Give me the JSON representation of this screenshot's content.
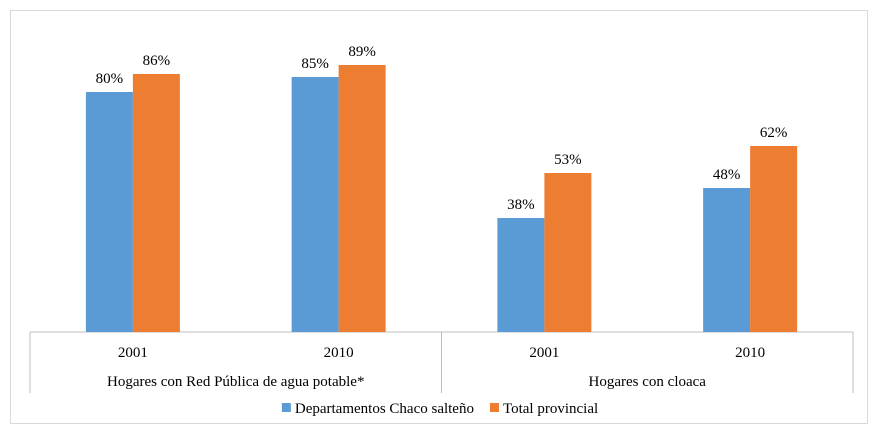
{
  "chart_data": {
    "type": "bar",
    "groups": [
      {
        "label": "Hogares con Red Pública de agua potable*",
        "categories": [
          "2001",
          "2010"
        ]
      },
      {
        "label": "Hogares con cloaca",
        "categories": [
          "2001",
          "2010"
        ]
      }
    ],
    "categories": [
      "2001",
      "2010",
      "2001",
      "2010"
    ],
    "series": [
      {
        "name": "Departamentos Chaco salteño",
        "color": "#5b9bd5",
        "values": [
          80,
          85,
          38,
          48
        ],
        "labels": [
          "80%",
          "85%",
          "38%",
          "48%"
        ]
      },
      {
        "name": "Total provincial",
        "color": "#ed7d31",
        "values": [
          86,
          89,
          53,
          62
        ],
        "labels": [
          "86%",
          "89%",
          "53%",
          "62%"
        ]
      }
    ],
    "unit": "%",
    "ylim": [
      0,
      100
    ],
    "grid": false,
    "legend_position": "bottom"
  }
}
